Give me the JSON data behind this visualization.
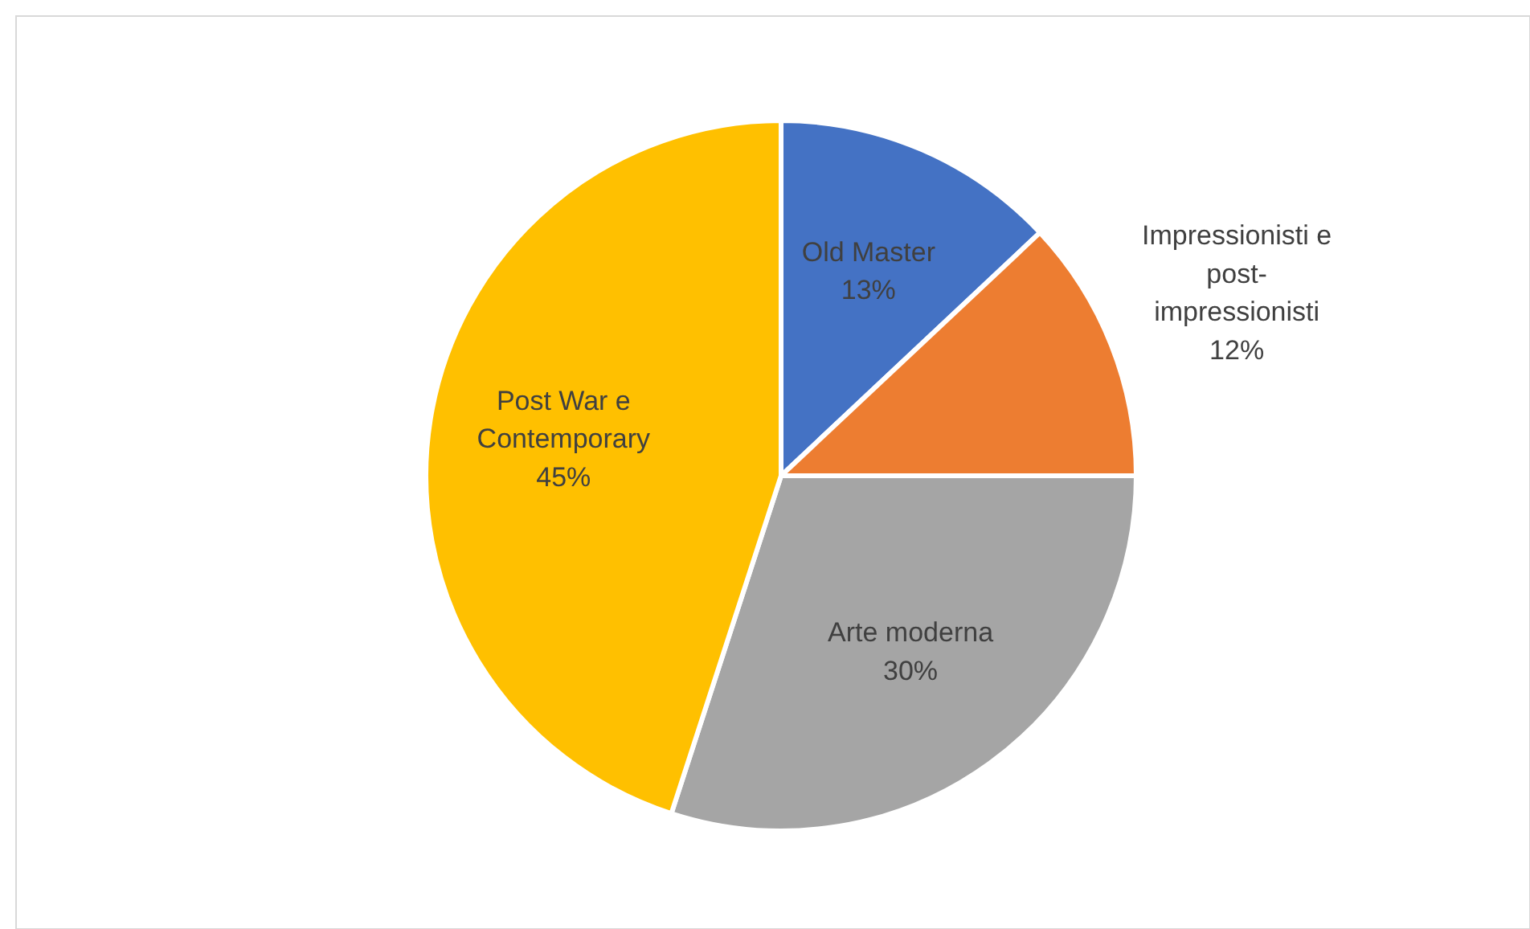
{
  "chart_data": {
    "type": "pie",
    "categories": [
      "Old Master",
      "Impressionisti e post-impressionisti",
      "Arte moderna",
      "Post War e Contemporary"
    ],
    "values": [
      13,
      12,
      30,
      45
    ],
    "colors": [
      "#4472c4",
      "#ed7d31",
      "#a5a5a5",
      "#ffc000"
    ],
    "value_labels": [
      "13%",
      "12%",
      "30%",
      "45%"
    ]
  }
}
